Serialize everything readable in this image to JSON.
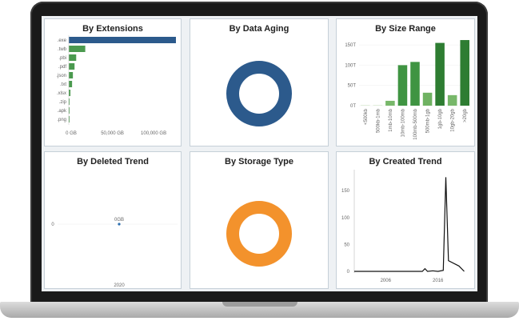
{
  "panels": {
    "extensions": {
      "title": "By Extensions",
      "chart_data": {
        "type": "bar",
        "orientation": "horizontal",
        "categories": [
          ".exe",
          ".twb",
          ".pbi",
          ".pdf",
          ".json",
          ".txt",
          ".xlsx",
          ".zip",
          ".apk",
          ".png"
        ],
        "values": [
          130000,
          20000,
          9000,
          7000,
          5000,
          4000,
          2000,
          300,
          200,
          100
        ],
        "xticks": [
          "0 GB",
          "50,000 GB",
          "100,000 GB"
        ],
        "xlim": [
          0,
          130000
        ],
        "colors": [
          "#2c5a8c",
          "#4b9a4f",
          "#4b9a4f",
          "#4b9a4f",
          "#4b9a4f",
          "#4b9a4f",
          "#4b9a4f",
          "#4b9a4f",
          "#4b9a4f",
          "#4b9a4f"
        ]
      }
    },
    "aging": {
      "title": "By Data Aging",
      "chart_data": {
        "type": "pie",
        "style": "donut",
        "values": [
          100
        ],
        "colors": [
          "#2c5a8c"
        ]
      }
    },
    "size": {
      "title": "By Size Range",
      "chart_data": {
        "type": "bar",
        "categories": [
          "<500kb",
          "500kb-1mb",
          "1mb-10mb",
          "10mb-100mb",
          "100mb-500mb",
          "500mb-1gb",
          "1gb-10gb",
          "10gb-20gb",
          ">20gb"
        ],
        "values": [
          0,
          0,
          12,
          100,
          108,
          32,
          155,
          26,
          162
        ],
        "yticks": [
          "0T",
          "50T",
          "100T",
          "150T"
        ],
        "ylim": [
          0,
          170
        ],
        "colors": [
          "#cfe4c4",
          "#cfe4c4",
          "#78b86a",
          "#3f9442",
          "#3f9442",
          "#6fb262",
          "#2e7d32",
          "#78b86a",
          "#2e7d32"
        ]
      }
    },
    "deleted": {
      "title": "By Deleted Trend",
      "chart_data": {
        "type": "scatter",
        "x": [
          "2020"
        ],
        "y": [
          0
        ],
        "point_label": "0GB",
        "ytick": "0",
        "xtick": "2020",
        "color": "#2c6fb0"
      }
    },
    "storage": {
      "title": "By Storage Type",
      "chart_data": {
        "type": "pie",
        "style": "donut",
        "values": [
          100
        ],
        "colors": [
          "#f3922c"
        ]
      }
    },
    "created": {
      "title": "By Created Trend",
      "chart_data": {
        "type": "line",
        "x": [
          2000,
          2002,
          2004,
          2006,
          2008,
          2010,
          2012,
          2013,
          2013.5,
          2014,
          2015,
          2016,
          2017,
          2017.5,
          2018,
          2020,
          2021
        ],
        "y": [
          0,
          0,
          0,
          0,
          0,
          0,
          0,
          0,
          5,
          0,
          1,
          0,
          2,
          175,
          20,
          10,
          0
        ],
        "yticks": [
          "0",
          "50",
          "100",
          "150"
        ],
        "ylim": [
          0,
          180
        ],
        "xticks": [
          "2006",
          "2016"
        ],
        "xlim": [
          2000,
          2022
        ],
        "color": "#111111"
      }
    }
  }
}
